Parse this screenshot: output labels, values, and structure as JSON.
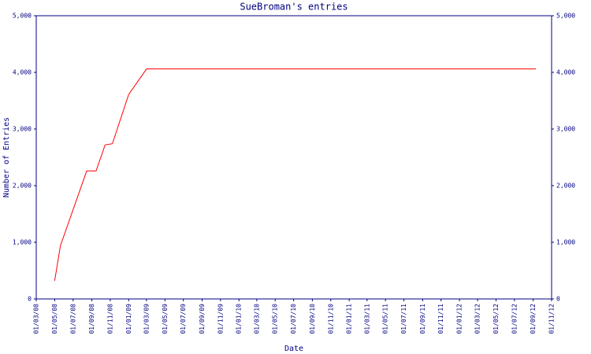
{
  "chart_data": {
    "type": "line",
    "title": "SueBroman's entries",
    "x_label": "Date",
    "y_label": "Number of Entries",
    "x": [
      "01/05/08",
      "20/05/08",
      "15/08/08",
      "15/09/08",
      "15/10/08",
      "08/11/08",
      "01/01/09",
      "01/03/09",
      "10/09/12"
    ],
    "series": [
      {
        "name": "entries",
        "color": "#ff0000",
        "values": [
          320,
          940,
          2260,
          2260,
          2720,
          2740,
          3610,
          4060,
          4060
        ]
      }
    ],
    "xlim": [
      "01/03/08",
      "01/11/12"
    ],
    "xticks": [
      "01/03/08",
      "01/05/08",
      "01/07/08",
      "01/09/08",
      "01/11/08",
      "01/01/09",
      "01/03/09",
      "01/05/09",
      "01/07/09",
      "01/09/09",
      "01/11/09",
      "01/01/10",
      "01/03/10",
      "01/05/10",
      "01/07/10",
      "01/09/10",
      "01/11/10",
      "01/01/11",
      "01/03/11",
      "01/05/11",
      "01/07/11",
      "01/09/11",
      "01/11/11",
      "01/01/12",
      "01/03/12",
      "01/05/12",
      "01/07/12",
      "01/09/12",
      "01/11/12"
    ],
    "ylim": [
      0,
      5000
    ],
    "yticks": [
      0,
      {
        "value": 1000,
        "label": "1,000"
      },
      {
        "value": 2000,
        "label": "2,000"
      },
      {
        "value": 3000,
        "label": "3,000"
      },
      {
        "value": 4000,
        "label": "4,000"
      },
      {
        "value": 5000,
        "label": "5,000"
      }
    ],
    "y2lim": [
      0,
      5000
    ],
    "y2ticks": [
      0,
      {
        "value": 1000,
        "label": "1,000"
      },
      {
        "value": 2000,
        "label": "2,000"
      },
      {
        "value": 3000,
        "label": "3,000"
      },
      {
        "value": 4000,
        "label": "4,000"
      },
      {
        "value": 5000,
        "label": "5,000"
      }
    ],
    "grid": false
  }
}
